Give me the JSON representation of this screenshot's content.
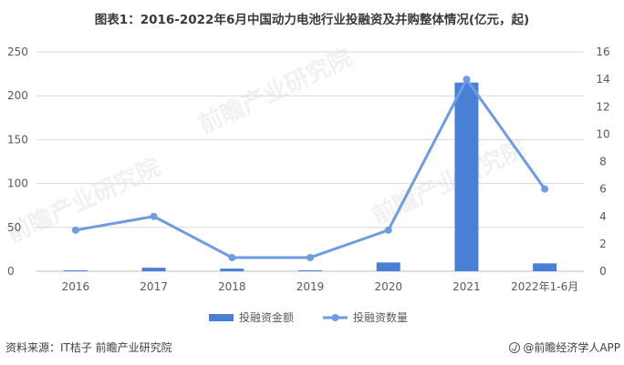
{
  "title": "图表1：2016-2022年6月中国动力电池行业投融资及并购整体情况(亿元，起)",
  "source": "资料来源：IT桔子 前瞻产业研究院",
  "brand": "@前瞻经济学人APP",
  "watermark": "前瞻产业研究院",
  "colors": {
    "bar": "#4a7fd6",
    "line": "#6d9ddf",
    "grid": "#d9d9d9",
    "axis": "#bfbfbf",
    "text": "#595959"
  },
  "chart_data": {
    "type": "bar+line",
    "categories": [
      "2016",
      "2017",
      "2018",
      "2019",
      "2020",
      "2021",
      "2022年1-6月"
    ],
    "series": [
      {
        "name": "投融资金额",
        "type": "bar",
        "axis": "left",
        "values": [
          1,
          4,
          3,
          1,
          10,
          215,
          9
        ]
      },
      {
        "name": "投融资数量",
        "type": "line",
        "axis": "right",
        "values": [
          3,
          4,
          1,
          1,
          3,
          14,
          6
        ]
      }
    ],
    "y_left": {
      "ticks": [
        "0",
        "50",
        "100",
        "150",
        "200",
        "250"
      ],
      "min": 0,
      "max": 250
    },
    "y_right": {
      "ticks": [
        "0",
        "2",
        "4",
        "6",
        "8",
        "10",
        "12",
        "14",
        "16"
      ],
      "min": 0,
      "max": 16
    },
    "grid": true,
    "legend": "bottom"
  }
}
